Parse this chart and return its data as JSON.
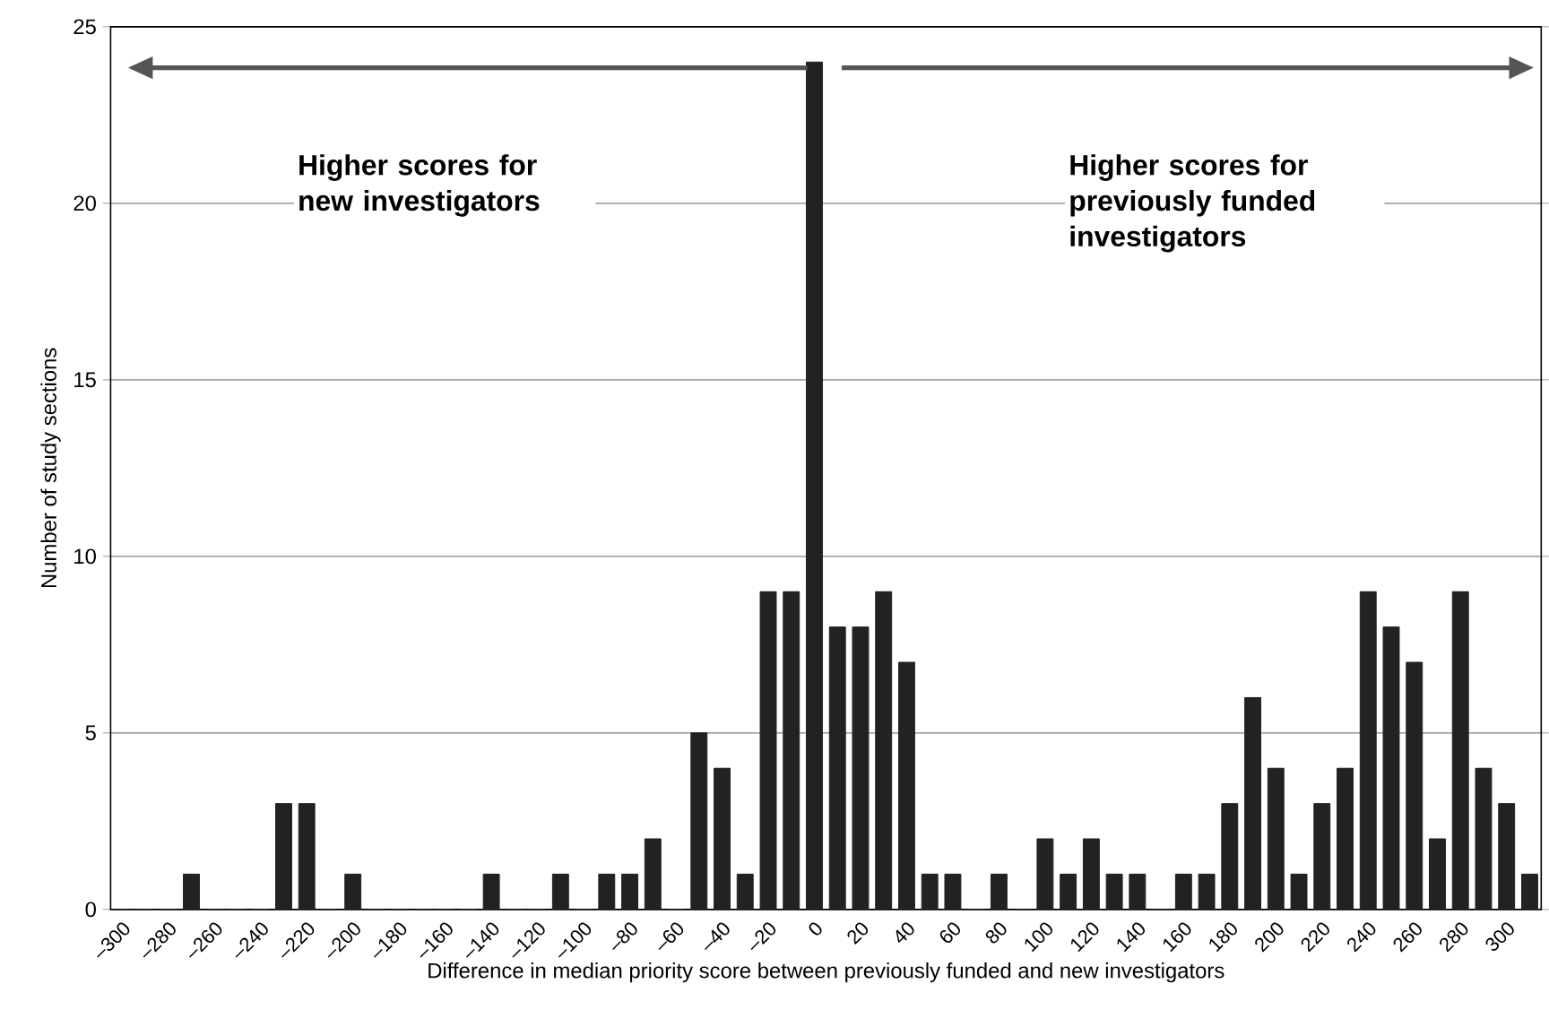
{
  "chart_data": {
    "type": "bar",
    "xlabel": "Difference in median priority score between previously funded and new investigators",
    "ylabel": "Number of study sections",
    "categories": [
      "–300",
      null,
      "–280",
      null,
      "–260",
      null,
      "–240",
      null,
      "–220",
      null,
      "–200",
      null,
      "–180",
      null,
      "–160",
      null,
      "–140",
      null,
      "–120",
      null,
      "–100",
      null,
      "–80",
      null,
      "–60",
      null,
      "–40",
      null,
      "–20",
      null,
      "0",
      null,
      "20",
      null,
      "40",
      null,
      "60",
      null,
      "80",
      null,
      "100",
      null,
      "120",
      null,
      "140",
      null,
      "160",
      null,
      "180",
      null,
      "200",
      null,
      "220",
      null,
      "240",
      null,
      "260",
      null,
      "280",
      null,
      "300",
      null
    ],
    "values": [
      0,
      0,
      0,
      1,
      0,
      0,
      0,
      3,
      3,
      0,
      1,
      0,
      0,
      0,
      0,
      0,
      1,
      0,
      0,
      1,
      0,
      1,
      1,
      2,
      0,
      5,
      4,
      1,
      9,
      9,
      24,
      8,
      8,
      9,
      7,
      1,
      1,
      0,
      1,
      0,
      2,
      1,
      2,
      1,
      1,
      0,
      1,
      1,
      3,
      6,
      4,
      1,
      3,
      4,
      9,
      8,
      7,
      2,
      9,
      4,
      3,
      1
    ],
    "color": "#222222",
    "ylim": [
      0,
      25
    ],
    "yticks": [
      0,
      5,
      10,
      15,
      20,
      25
    ],
    "grid": "y",
    "annotations": [
      "Higher scores for new investigators",
      "Higher scores for previously funded investigators"
    ]
  }
}
